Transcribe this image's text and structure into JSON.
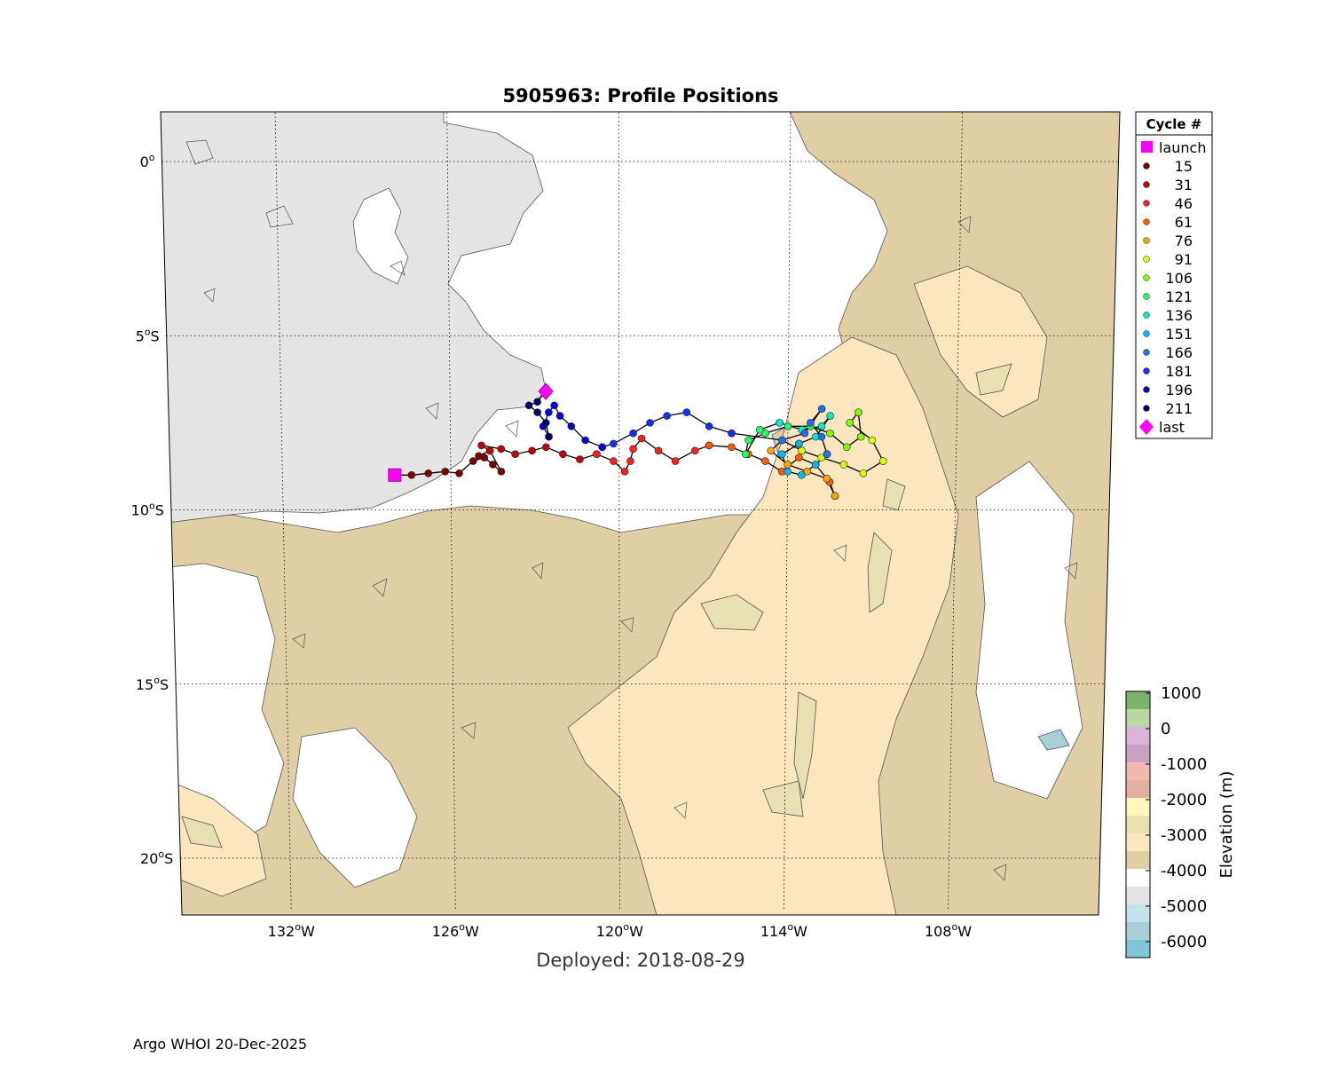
{
  "title": "5905963: Profile Positions",
  "deployed": "Deployed: 2018-08-29",
  "footer": "Argo WHOI 20-Dec-2025",
  "map": {
    "lon_ticks": [
      {
        "lon": -132,
        "label": "132",
        "hemi": "W"
      },
      {
        "lon": -126,
        "label": "126",
        "hemi": "W"
      },
      {
        "lon": -120,
        "label": "120",
        "hemi": "W"
      },
      {
        "lon": -114,
        "label": "114",
        "hemi": "W"
      },
      {
        "lon": -108,
        "label": "108",
        "hemi": "W"
      }
    ],
    "lat_ticks": [
      {
        "lat": 0,
        "label": "0",
        "hemi": ""
      },
      {
        "lat": -5,
        "label": "5",
        "hemi": "S"
      },
      {
        "lat": -10,
        "label": "10",
        "hemi": "S"
      },
      {
        "lat": -15,
        "label": "15",
        "hemi": "S"
      },
      {
        "lat": -20,
        "label": "20",
        "hemi": "S"
      }
    ],
    "extent": {
      "lon_min": -136.0,
      "lon_max": -102.5,
      "lat_min": -21.5,
      "lat_max": 1.4
    },
    "grid": true
  },
  "legend": {
    "title": "Cycle #",
    "items": [
      {
        "label": "launch",
        "color": "#ff00ff",
        "marker": "square"
      },
      {
        "label": "15",
        "color": "#7f0000",
        "marker": "dot"
      },
      {
        "label": "31",
        "color": "#c40000",
        "marker": "dot"
      },
      {
        "label": "46",
        "color": "#ff1f1f",
        "marker": "dot"
      },
      {
        "label": "61",
        "color": "#ff5a00",
        "marker": "dot"
      },
      {
        "label": "76",
        "color": "#ffa500",
        "marker": "dot"
      },
      {
        "label": "91",
        "color": "#d8ff00",
        "marker": "dot"
      },
      {
        "label": "106",
        "color": "#7fff00",
        "marker": "dot"
      },
      {
        "label": "121",
        "color": "#1fff60",
        "marker": "dot"
      },
      {
        "label": "136",
        "color": "#00f0c8",
        "marker": "dot"
      },
      {
        "label": "151",
        "color": "#00b8ff",
        "marker": "dot"
      },
      {
        "label": "166",
        "color": "#1f6fff",
        "marker": "dot"
      },
      {
        "label": "181",
        "color": "#1030ff",
        "marker": "dot"
      },
      {
        "label": "196",
        "color": "#0000d8",
        "marker": "dot"
      },
      {
        "label": "211",
        "color": "#00006e",
        "marker": "dot"
      },
      {
        "label": "last",
        "color": "#ff00ff",
        "marker": "diamond"
      }
    ]
  },
  "colorbar": {
    "label": "Elevation (m)",
    "ticks": [
      "1000",
      "0",
      "-1000",
      "-2000",
      "-3000",
      "-4000",
      "-5000",
      "-6000"
    ],
    "bands": [
      "#7cb36b",
      "#b9d8a3",
      "#d9b3d8",
      "#c4a2c0",
      "#f2b9b1",
      "#e0b0a0",
      "#fdf7b8",
      "#e7e1b1",
      "#fce6bd",
      "#e0cfa5",
      "#ffffff",
      "#e4e4e4",
      "#c4e2ea",
      "#a8cfd8",
      "#7fc5d9"
    ]
  },
  "chart_data": {
    "type": "scatter",
    "title": "5905963: Profile Positions",
    "xlabel": "",
    "ylabel": "",
    "xlim": [
      -136.0,
      -102.5
    ],
    "ylim": [
      -21.5,
      1.4
    ],
    "launch": {
      "lon": -128.0,
      "lat": -9.0
    },
    "last": {
      "lon": -122.6,
      "lat": -6.6
    },
    "track": [
      {
        "name": "15",
        "color": "#7f0000",
        "points": [
          [
            -128.0,
            -9.0
          ],
          [
            -127.4,
            -9.0
          ],
          [
            -126.8,
            -8.95
          ],
          [
            -126.2,
            -8.9
          ],
          [
            -125.7,
            -8.95
          ],
          [
            -125.2,
            -8.6
          ],
          [
            -124.8,
            -8.5
          ],
          [
            -124.5,
            -8.7
          ],
          [
            -124.2,
            -8.9
          ],
          [
            -124.6,
            -8.3
          ],
          [
            -125.0,
            -8.45
          ]
        ]
      },
      {
        "name": "31",
        "color": "#c40000",
        "points": [
          [
            -124.6,
            -8.3
          ],
          [
            -124.9,
            -8.15
          ],
          [
            -124.2,
            -8.25
          ],
          [
            -123.7,
            -8.4
          ],
          [
            -123.1,
            -8.3
          ],
          [
            -122.6,
            -8.2
          ],
          [
            -122.0,
            -8.4
          ],
          [
            -121.4,
            -8.55
          ],
          [
            -120.8,
            -8.4
          ]
        ]
      },
      {
        "name": "46",
        "color": "#ff1f1f",
        "points": [
          [
            -120.8,
            -8.4
          ],
          [
            -120.2,
            -8.6
          ],
          [
            -119.8,
            -8.9
          ],
          [
            -119.6,
            -8.6
          ],
          [
            -119.5,
            -8.25
          ],
          [
            -119.2,
            -7.95
          ],
          [
            -118.6,
            -8.3
          ],
          [
            -118.0,
            -8.6
          ],
          [
            -117.3,
            -8.3
          ],
          [
            -116.8,
            -8.15
          ]
        ]
      },
      {
        "name": "61",
        "color": "#ff5a00",
        "points": [
          [
            -116.8,
            -8.15
          ],
          [
            -116.0,
            -8.2
          ],
          [
            -115.4,
            -8.4
          ],
          [
            -114.8,
            -8.6
          ],
          [
            -114.2,
            -8.9
          ],
          [
            -113.6,
            -8.5
          ],
          [
            -113.0,
            -8.7
          ],
          [
            -112.5,
            -9.2
          ],
          [
            -112.3,
            -9.6
          ]
        ]
      },
      {
        "name": "76",
        "color": "#ffa500",
        "points": [
          [
            -112.3,
            -9.6
          ],
          [
            -112.6,
            -9.1
          ],
          [
            -113.3,
            -8.9
          ],
          [
            -114.0,
            -8.7
          ],
          [
            -114.6,
            -8.3
          ],
          [
            -114.2,
            -8.0
          ],
          [
            -113.5,
            -8.3
          ]
        ]
      },
      {
        "name": "91",
        "color": "#d8ff00",
        "points": [
          [
            -113.5,
            -8.3
          ],
          [
            -112.8,
            -8.5
          ],
          [
            -112.0,
            -8.7
          ],
          [
            -111.3,
            -8.95
          ],
          [
            -110.6,
            -8.6
          ],
          [
            -111.0,
            -8.0
          ],
          [
            -111.8,
            -7.5
          ]
        ]
      },
      {
        "name": "106",
        "color": "#7fff00",
        "points": [
          [
            -111.8,
            -7.5
          ],
          [
            -111.5,
            -7.2
          ],
          [
            -111.4,
            -7.9
          ],
          [
            -111.9,
            -8.2
          ],
          [
            -112.5,
            -7.8
          ],
          [
            -113.2,
            -7.6
          ]
        ]
      },
      {
        "name": "121",
        "color": "#1fff60",
        "points": [
          [
            -113.2,
            -7.6
          ],
          [
            -114.0,
            -7.6
          ],
          [
            -114.8,
            -7.8
          ],
          [
            -115.4,
            -8.0
          ],
          [
            -115.5,
            -8.4
          ],
          [
            -115.0,
            -7.7
          ],
          [
            -114.3,
            -7.5
          ]
        ]
      },
      {
        "name": "136",
        "color": "#00f0c8",
        "points": [
          [
            -114.3,
            -7.5
          ],
          [
            -113.5,
            -7.7
          ],
          [
            -112.8,
            -7.6
          ],
          [
            -112.5,
            -7.3
          ],
          [
            -113.0,
            -7.9
          ],
          [
            -113.6,
            -8.1
          ]
        ]
      },
      {
        "name": "151",
        "color": "#00b8ff",
        "points": [
          [
            -113.6,
            -8.1
          ],
          [
            -114.2,
            -8.4
          ],
          [
            -114.0,
            -8.9
          ],
          [
            -113.5,
            -9.0
          ],
          [
            -113.0,
            -8.7
          ],
          [
            -112.6,
            -8.4
          ]
        ]
      },
      {
        "name": "166",
        "color": "#1f6fff",
        "points": [
          [
            -112.6,
            -8.4
          ],
          [
            -112.8,
            -7.9
          ],
          [
            -113.2,
            -7.5
          ],
          [
            -112.8,
            -7.1
          ],
          [
            -113.4,
            -7.8
          ],
          [
            -114.2,
            -8.0
          ],
          [
            -116.0,
            -7.8
          ]
        ]
      },
      {
        "name": "181",
        "color": "#1030ff",
        "points": [
          [
            -116.0,
            -7.8
          ],
          [
            -116.8,
            -7.6
          ],
          [
            -117.6,
            -7.2
          ],
          [
            -118.3,
            -7.3
          ],
          [
            -118.9,
            -7.5
          ],
          [
            -119.5,
            -7.8
          ],
          [
            -120.2,
            -8.1
          ],
          [
            -120.6,
            -8.2
          ]
        ]
      },
      {
        "name": "196",
        "color": "#0000d8",
        "points": [
          [
            -120.6,
            -8.2
          ],
          [
            -121.2,
            -8.0
          ],
          [
            -121.7,
            -7.6
          ],
          [
            -122.1,
            -7.3
          ],
          [
            -122.3,
            -7.0
          ],
          [
            -122.5,
            -7.2
          ],
          [
            -122.7,
            -7.6
          ],
          [
            -122.5,
            -7.9
          ]
        ]
      },
      {
        "name": "211",
        "color": "#00006e",
        "points": [
          [
            -122.5,
            -7.9
          ],
          [
            -122.6,
            -7.5
          ],
          [
            -122.9,
            -7.2
          ],
          [
            -123.2,
            -7.0
          ],
          [
            -122.9,
            -6.9
          ],
          [
            -122.6,
            -6.6
          ]
        ]
      }
    ]
  }
}
